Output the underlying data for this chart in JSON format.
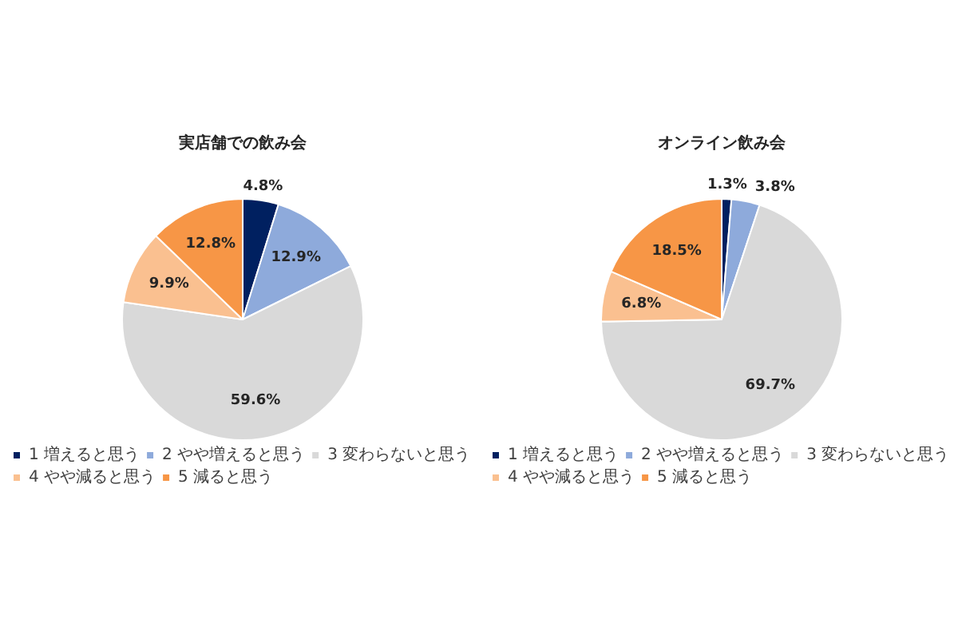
{
  "chart_data": [
    {
      "type": "pie",
      "title": "実店舗での飲み会",
      "categories": [
        "1 増えると思う",
        "2 やや増えると思う",
        "3 変わらないと思う",
        "4 やや減ると思う",
        "5 減ると思う"
      ],
      "values": [
        4.8,
        12.9,
        59.6,
        9.9,
        12.8
      ],
      "colors": [
        "#002060",
        "#8eaadb",
        "#d9d9d9",
        "#fac090",
        "#f79646"
      ],
      "value_labels": [
        "4.8%",
        "12.9%",
        "59.6%",
        "9.9%",
        "12.8%"
      ],
      "legend": "bottom"
    },
    {
      "type": "pie",
      "title": "オンライン飲み会",
      "categories": [
        "1 増えると思う",
        "2 やや増えると思う",
        "3 変わらないと思う",
        "4 やや減ると思う",
        "5 減ると思う"
      ],
      "values": [
        1.3,
        3.8,
        69.7,
        6.8,
        18.5
      ],
      "colors": [
        "#002060",
        "#8eaadb",
        "#d9d9d9",
        "#fac090",
        "#f79646"
      ],
      "value_labels": [
        "1.3%",
        "3.8%",
        "69.7%",
        "6.8%",
        "18.5%"
      ],
      "legend": "bottom"
    }
  ]
}
